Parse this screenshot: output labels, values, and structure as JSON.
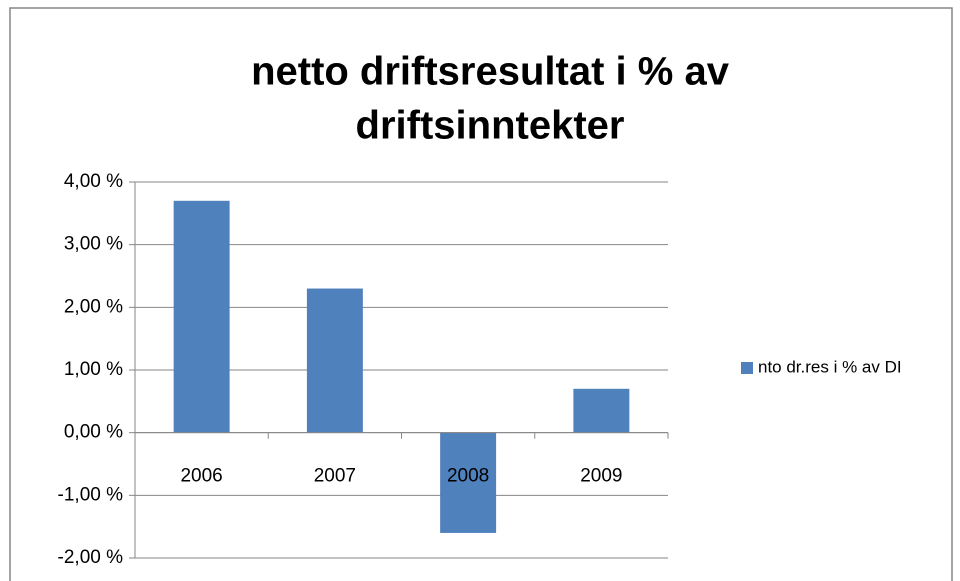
{
  "chart_data": {
    "type": "bar",
    "title": [
      "netto driftsresultat i % av",
      "driftsinntekter"
    ],
    "categories": [
      "2006",
      "2007",
      "2008",
      "2009"
    ],
    "series": [
      {
        "name": "nto dr.res i  % av DI",
        "color": "#4f81bd",
        "values": [
          3.7,
          2.3,
          -1.6,
          0.7
        ]
      }
    ],
    "ylim": [
      -2,
      4
    ],
    "yticks": [
      {
        "value": -2,
        "label": "-2,00 %"
      },
      {
        "value": -1,
        "label": "-1,00 %"
      },
      {
        "value": 0,
        "label": "0,00 %"
      },
      {
        "value": 1,
        "label": "1,00 %"
      },
      {
        "value": 2,
        "label": "2,00 %"
      },
      {
        "value": 3,
        "label": "3,00 %"
      },
      {
        "value": 4,
        "label": "4,00 %"
      }
    ],
    "grid": true,
    "legend": "right"
  }
}
